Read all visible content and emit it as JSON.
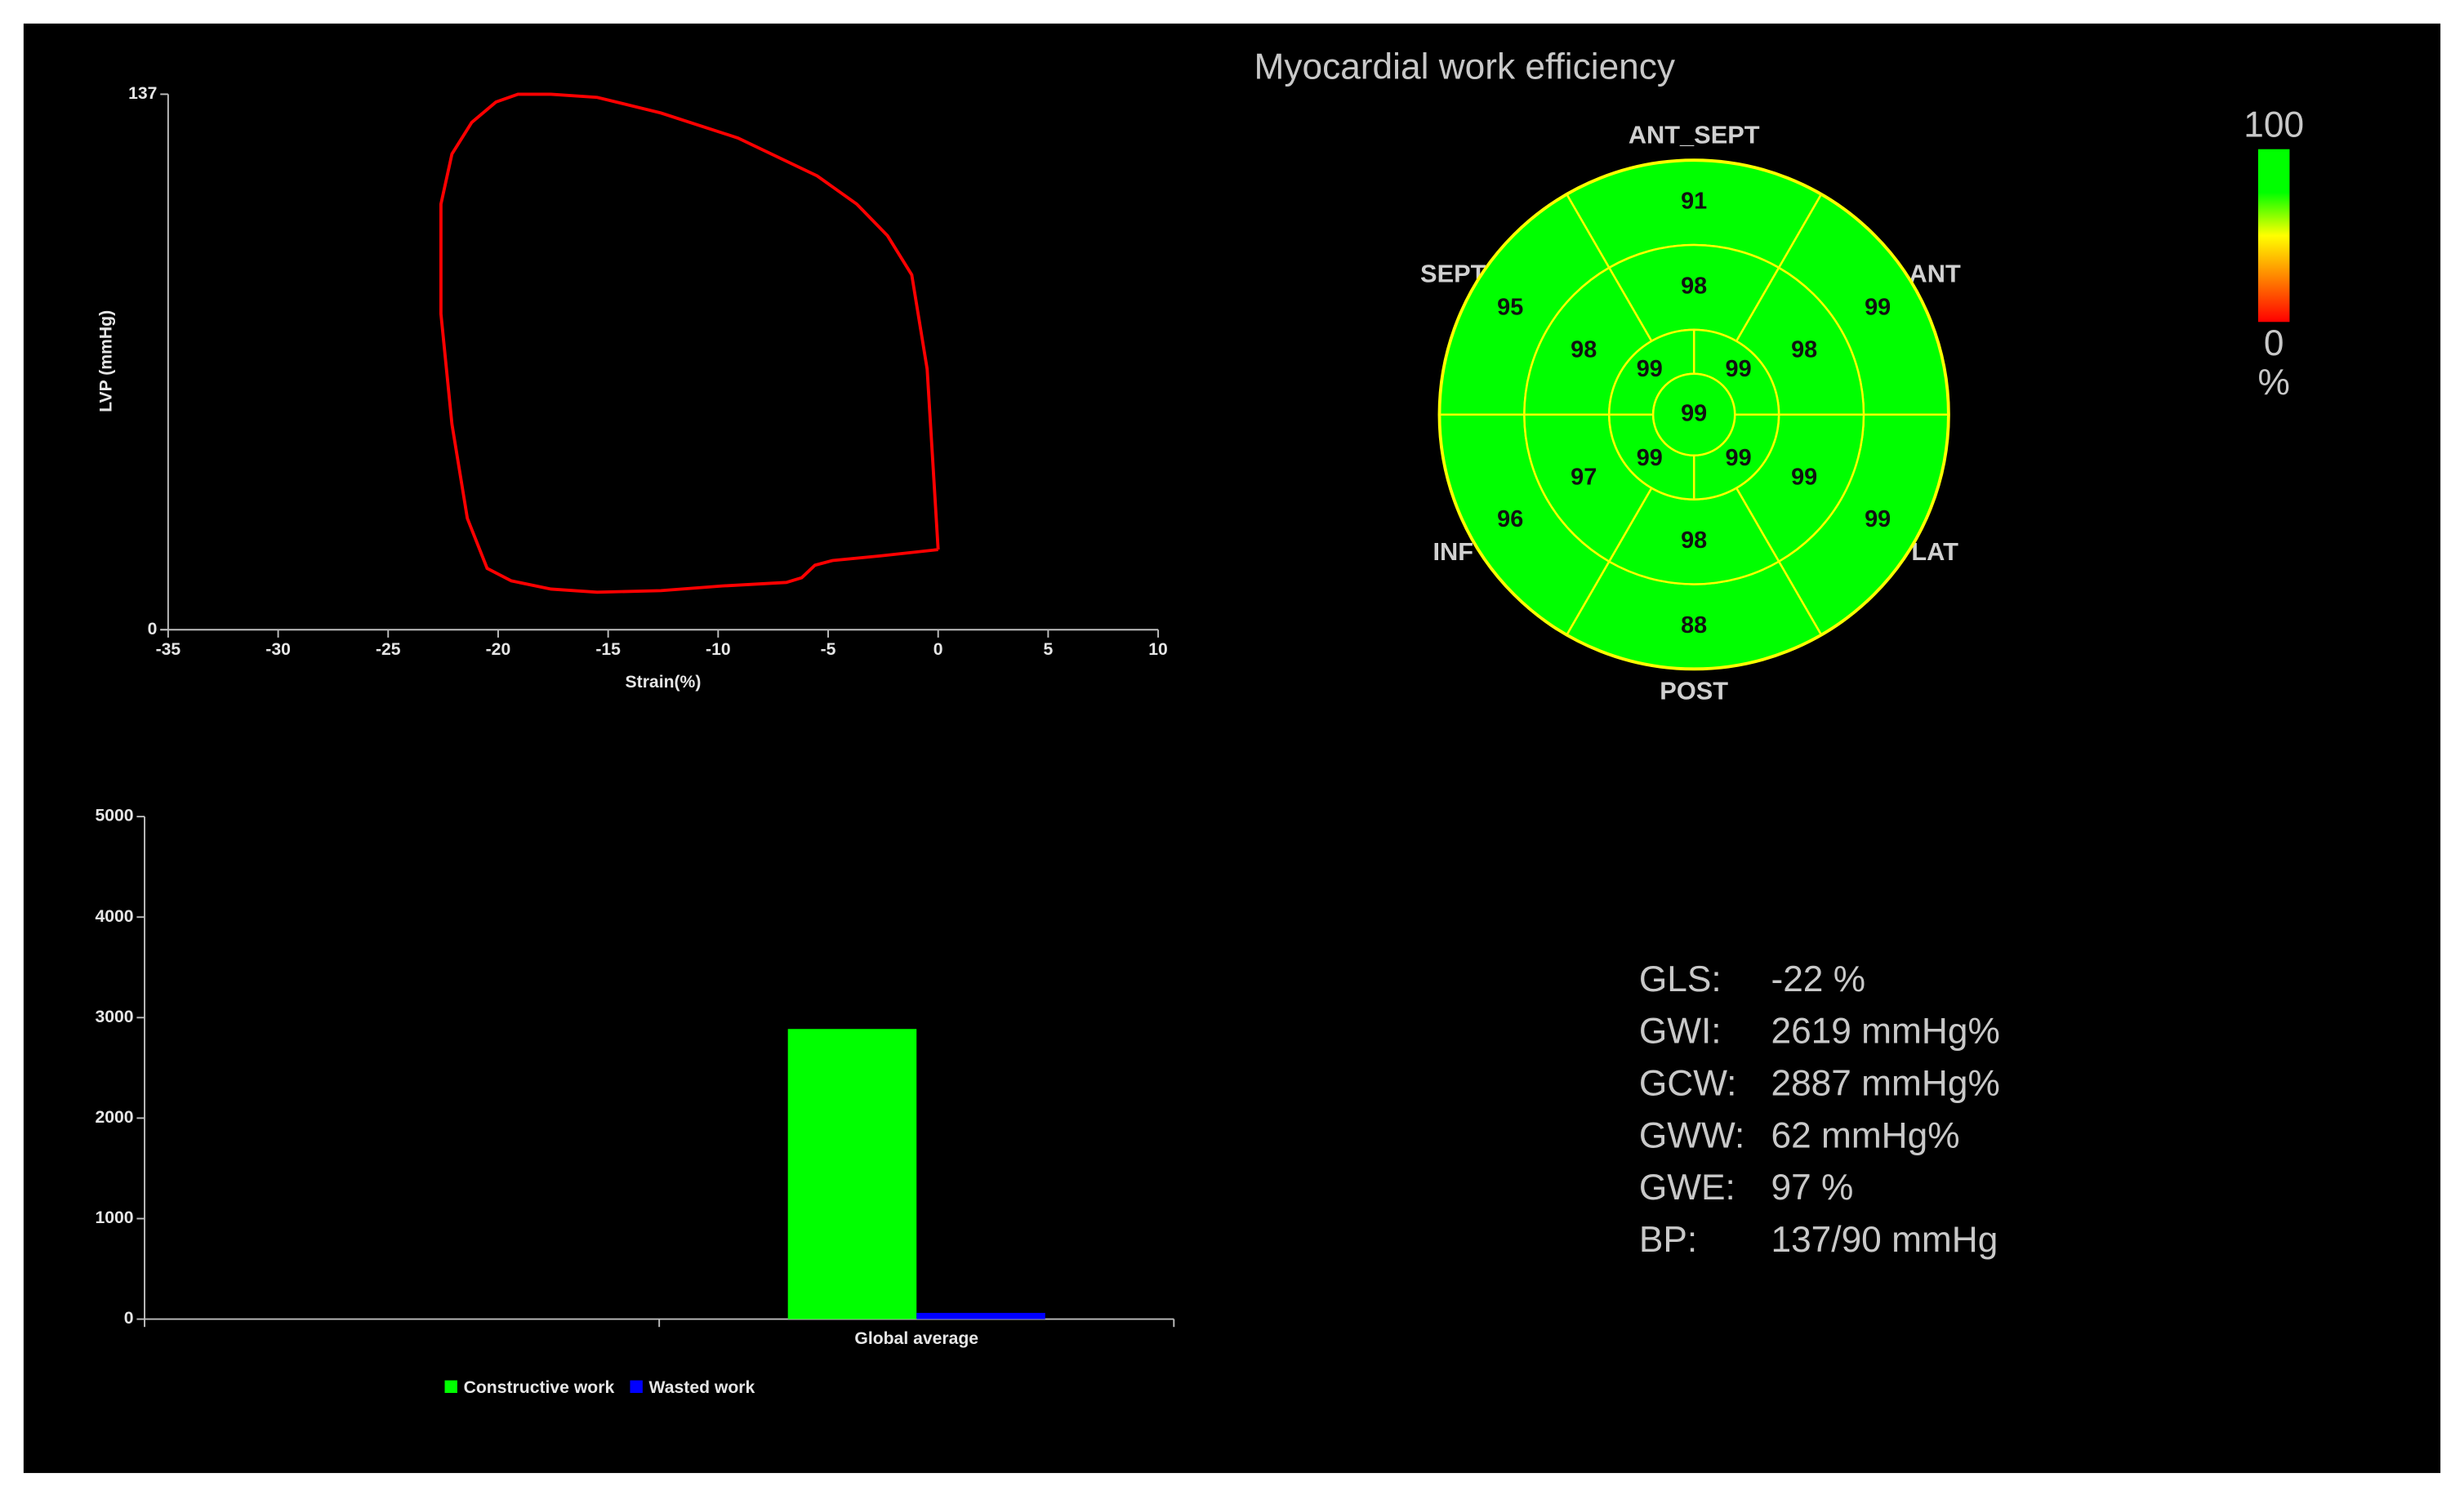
{
  "chart_data": [
    {
      "type": "line",
      "x_label": "Strain(%)",
      "y_label": "LVP (mmHg)",
      "x": [
        0,
        -0.5,
        -1.2,
        -2.3,
        -3.7,
        -5.5,
        -9.1,
        -12.6,
        -15.5,
        -17.6,
        -19.1,
        -20.1,
        -21.2,
        -22.1,
        -22.6,
        -22.6,
        -22.1,
        -21.4,
        -20.5,
        -19.4,
        -17.6,
        -15.5,
        -12.6,
        -9.8,
        -6.9,
        -6.2,
        -5.6,
        -4.8,
        -2.6,
        0
      ],
      "series": [
        {
          "color": "#ff0000",
          "values": [
            20.5,
            66.7,
            90.8,
            100.8,
            108.9,
            116.1,
            125.8,
            132.2,
            136.2,
            137,
            137,
            135,
            129.8,
            121.7,
            108.9,
            80.8,
            52.6,
            28.5,
            15.7,
            12.5,
            10.4,
            9.6,
            10,
            11.2,
            12.1,
            13.3,
            16.5,
            17.7,
            18.9,
            20.5
          ]
        }
      ],
      "xlim": [
        -35,
        10
      ],
      "xticks": [
        -35,
        -30,
        -25,
        -20,
        -15,
        -10,
        -5,
        0,
        5,
        10
      ],
      "ylim": [
        0,
        137
      ],
      "yticks": [
        0,
        137
      ]
    },
    {
      "type": "bar",
      "categories": [
        null,
        "Global average"
      ],
      "series": [
        {
          "name": "Constructive work",
          "color": "#00ff00",
          "values": [
            null,
            2887
          ]
        },
        {
          "name": "Wasted work",
          "color": "#0000ff",
          "values": [
            null,
            62
          ]
        }
      ],
      "ylim": [
        0,
        5000
      ],
      "yticks": [
        0,
        1000,
        2000,
        3000,
        4000,
        5000
      ]
    },
    {
      "type": "bullseye",
      "title": "Myocardial work efficiency",
      "directions": [
        "ANT_SEPT",
        "ANT",
        "LAT",
        "POST",
        "INF",
        "SEPT"
      ],
      "basal": [
        91,
        99,
        99,
        88,
        96,
        95
      ],
      "mid": [
        98,
        98,
        99,
        98,
        97,
        98
      ],
      "apical": [
        99,
        99,
        99,
        99
      ],
      "apex": 99,
      "colorbar": {
        "ticks": [
          0,
          100
        ],
        "unit": "%",
        "colors": [
          "#ff0000",
          "#ff8000",
          "#ffff00",
          "#00ff00",
          "#00ff00"
        ]
      },
      "line_color": "#ffff00"
    }
  ],
  "stats": {
    "rows": [
      [
        "GLS:",
        "-22 %"
      ],
      [
        "GWI:",
        "2619 mmHg%"
      ],
      [
        "GCW:",
        "2887 mmHg%"
      ],
      [
        "GWW:",
        "62 mmHg%"
      ],
      [
        "GWE:",
        "97 %"
      ],
      [
        "BP:",
        "137/90 mmHg"
      ]
    ]
  }
}
